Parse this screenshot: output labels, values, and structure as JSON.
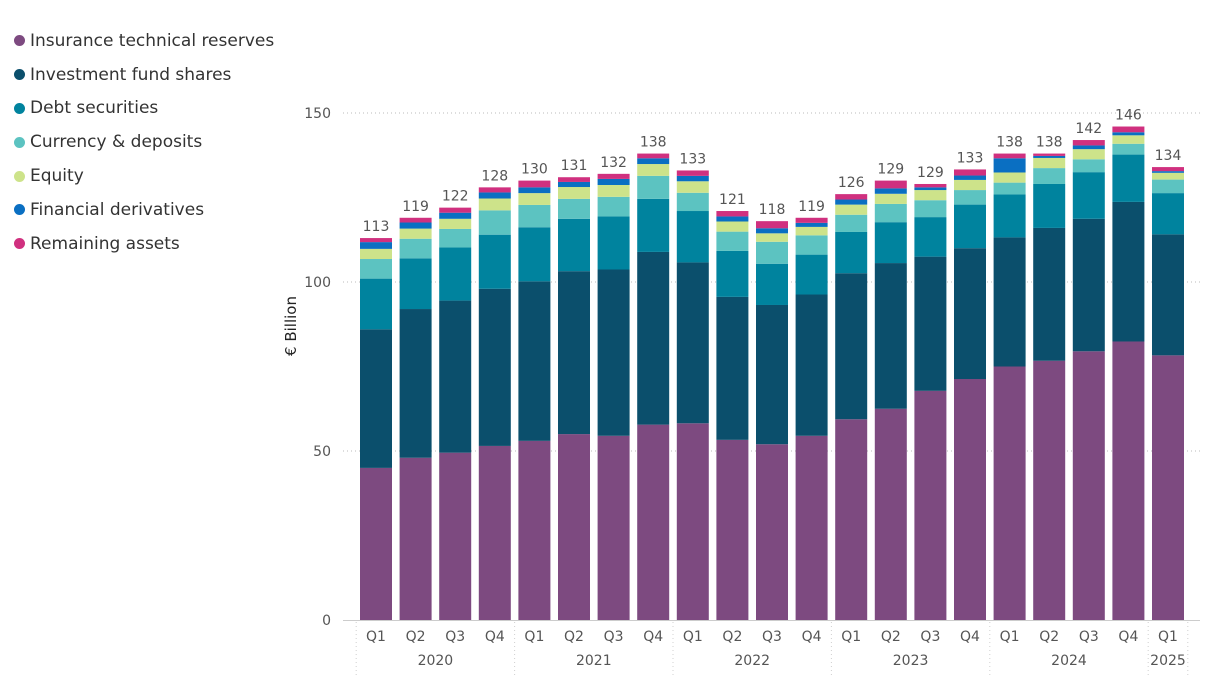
{
  "chart_data": {
    "type": "stacked-bar",
    "ylabel": "€ Billion",
    "ylim": [
      0,
      150
    ],
    "yticks": [
      0,
      50,
      100,
      150
    ],
    "grid": true,
    "legend_position": "top-left",
    "categories": [
      {
        "quarter": "Q1",
        "year": "2020"
      },
      {
        "quarter": "Q2",
        "year": "2020"
      },
      {
        "quarter": "Q3",
        "year": "2020"
      },
      {
        "quarter": "Q4",
        "year": "2020"
      },
      {
        "quarter": "Q1",
        "year": "2021"
      },
      {
        "quarter": "Q2",
        "year": "2021"
      },
      {
        "quarter": "Q3",
        "year": "2021"
      },
      {
        "quarter": "Q4",
        "year": "2021"
      },
      {
        "quarter": "Q1",
        "year": "2022"
      },
      {
        "quarter": "Q2",
        "year": "2022"
      },
      {
        "quarter": "Q3",
        "year": "2022"
      },
      {
        "quarter": "Q4",
        "year": "2022"
      },
      {
        "quarter": "Q1",
        "year": "2023"
      },
      {
        "quarter": "Q2",
        "year": "2023"
      },
      {
        "quarter": "Q3",
        "year": "2023"
      },
      {
        "quarter": "Q4",
        "year": "2023"
      },
      {
        "quarter": "Q1",
        "year": "2024"
      },
      {
        "quarter": "Q2",
        "year": "2024"
      },
      {
        "quarter": "Q3",
        "year": "2024"
      },
      {
        "quarter": "Q4",
        "year": "2024"
      },
      {
        "quarter": "Q1",
        "year": "2025"
      }
    ],
    "years": [
      "2020",
      "2021",
      "2022",
      "2023",
      "2024",
      "2025"
    ],
    "totals": [
      113,
      119,
      122,
      128,
      130,
      131,
      132,
      138,
      133,
      121,
      118,
      119,
      126,
      129,
      129,
      133,
      138,
      138,
      142,
      146,
      134
    ],
    "series": [
      {
        "name": "Insurance technical reserves",
        "color": "#7d4a80",
        "values": [
          45,
          48,
          49.5,
          51.5,
          53,
          55,
          54.5,
          57.8,
          58.2,
          53.3,
          52,
          54.5,
          59.4,
          62.5,
          67.8,
          71.3,
          75,
          76.7,
          79.5,
          82.4,
          78.3
        ]
      },
      {
        "name": "Investment fund shares",
        "color": "#0b4f6c",
        "values": [
          41,
          44,
          45,
          46.5,
          47.2,
          48.2,
          49.2,
          51.1,
          47.6,
          42.3,
          41.2,
          41.8,
          43.2,
          43.1,
          39.7,
          38.7,
          38.2,
          39.3,
          39.2,
          41.3,
          35.8
        ]
      },
      {
        "name": "Debt securities",
        "color": "#00839e",
        "values": [
          15,
          15,
          15.7,
          16,
          16,
          15.5,
          15.7,
          15.7,
          15.2,
          13.6,
          12.2,
          11.8,
          12.2,
          12.1,
          11.7,
          12.9,
          12.7,
          13,
          13.8,
          14,
          12.2
        ]
      },
      {
        "name": "Currency & deposits",
        "color": "#5cc3c1",
        "values": [
          5.8,
          5.8,
          5.5,
          7.2,
          6.6,
          5.9,
          5.8,
          6.8,
          5.4,
          5.7,
          6.5,
          5.7,
          5.1,
          5.4,
          5,
          4.3,
          3.5,
          4.7,
          3.8,
          3.2,
          4
        ]
      },
      {
        "name": "Equity",
        "color": "#cde38a",
        "values": [
          3,
          3,
          3,
          3.5,
          3.5,
          3.5,
          3.5,
          3.5,
          3.4,
          3,
          2.5,
          2.5,
          3,
          3,
          3,
          3,
          3,
          3,
          3,
          2.5,
          2
        ]
      },
      {
        "name": "Financial derivatives",
        "color": "#0a6fc2",
        "values": [
          2,
          1.8,
          1.8,
          1.8,
          1.7,
          1.5,
          1.8,
          1.7,
          1.6,
          1.5,
          1.5,
          1.2,
          1.5,
          1.6,
          0.8,
          1.3,
          4.2,
          0.6,
          1.1,
          0.9,
          0.5
        ]
      },
      {
        "name": "Remaining assets",
        "color": "#d0307f",
        "values": [
          1.2,
          1.4,
          1.5,
          1.5,
          2,
          1.4,
          1.5,
          1.4,
          1.6,
          1.6,
          2.1,
          1.5,
          1.6,
          2.3,
          1,
          1.8,
          1.4,
          0.7,
          1.6,
          1.7,
          1.2
        ]
      }
    ]
  }
}
